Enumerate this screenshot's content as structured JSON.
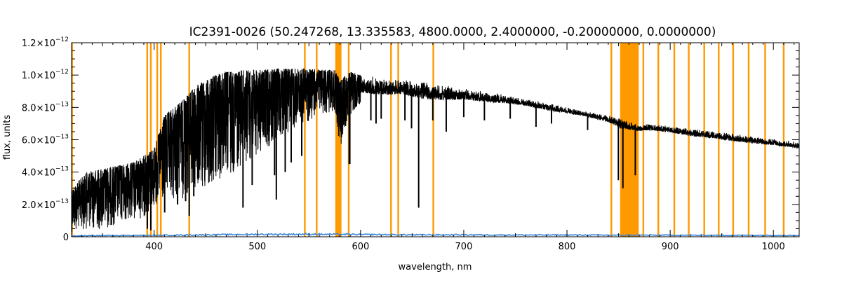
{
  "chart_data": {
    "type": "line",
    "title": "IC2391-0026   (50.247268, 13.335583, 4800.0000, 2.4000000, -0.20000000, 0.0000000)",
    "xlabel": "wavelength, nm",
    "ylabel": "flux, units",
    "xlim": [
      320,
      1025
    ],
    "ylim": [
      0,
      1.2e-12
    ],
    "x_ticks": [
      {
        "value": 400,
        "label": "400"
      },
      {
        "value": 500,
        "label": "500"
      },
      {
        "value": 600,
        "label": "600"
      },
      {
        "value": 700,
        "label": "700"
      },
      {
        "value": 800,
        "label": "800"
      },
      {
        "value": 900,
        "label": "900"
      },
      {
        "value": 1000,
        "label": "1000"
      }
    ],
    "y_ticks": [
      {
        "value": 0,
        "mantissa": "0",
        "exponent": ""
      },
      {
        "value": 2e-13,
        "mantissa": "2.0×10",
        "exponent": "−13"
      },
      {
        "value": 4e-13,
        "mantissa": "4.0×10",
        "exponent": "−13"
      },
      {
        "value": 6e-13,
        "mantissa": "6.0×10",
        "exponent": "−13"
      },
      {
        "value": 8e-13,
        "mantissa": "8.0×10",
        "exponent": "−13"
      },
      {
        "value": 1e-12,
        "mantissa": "1.0×10",
        "exponent": "−12"
      },
      {
        "value": 1.2e-12,
        "mantissa": "1.2×10",
        "exponent": "−12"
      }
    ],
    "series": [
      {
        "color": "#000000",
        "envelope": {
          "x": [
            320,
            335,
            350,
            365,
            380,
            390,
            400,
            410,
            425,
            440,
            455,
            470,
            485,
            500,
            520,
            540,
            560,
            575,
            580,
            590,
            600,
            620,
            640,
            660,
            680,
            700,
            720,
            740,
            760,
            780,
            800,
            820,
            840,
            852,
            870,
            880,
            900,
            920,
            940,
            960,
            980,
            1000,
            1025
          ],
          "upper": [
            3e-13,
            4e-13,
            4.2e-13,
            4.4e-13,
            4.6e-13,
            5e-13,
            5.5e-13,
            7.5e-13,
            8.3e-13,
            9.3e-13,
            9.9e-13,
            1.02e-12,
            1.03e-12,
            1.03e-12,
            1.04e-12,
            1.04e-12,
            1.035e-12,
            1.03e-12,
            9.7e-13,
            1.02e-12,
            1e-12,
            9.9e-13,
            9.75e-13,
            9.6e-13,
            9.4e-13,
            9.2e-13,
            9e-13,
            8.8e-13,
            8.55e-13,
            8.3e-13,
            8e-13,
            7.75e-13,
            7.5e-13,
            7.4e-13,
            6.9e-13,
            7e-13,
            6.85e-13,
            6.7e-13,
            6.55e-13,
            6.4e-13,
            6.2e-13,
            6.05e-13,
            5.9e-13
          ],
          "lower": [
            3e-14,
            5e-14,
            4e-14,
            8e-14,
            1e-13,
            1.2e-13,
            1.8e-13,
            2e-13,
            2.3e-13,
            2.5e-13,
            3e-13,
            3.5e-13,
            4.5e-13,
            5e-13,
            6e-13,
            6.8e-13,
            7.5e-13,
            7.8e-13,
            5.5e-13,
            7.5e-13,
            8.2e-13,
            8e-13,
            8.2e-13,
            7.8e-13,
            7.8e-13,
            8e-13,
            7.9e-13,
            7.9e-13,
            7.8e-13,
            7.5e-13,
            7.4e-13,
            7.2e-13,
            6.8e-13,
            6.2e-13,
            6.3e-13,
            6.3e-13,
            6.2e-13,
            5.9e-13,
            5.8e-13,
            5.6e-13,
            5.5e-13,
            5.4e-13,
            5.2e-13
          ]
        },
        "deep_lines": [
          {
            "x": 393.4,
            "min": 5e-14
          },
          {
            "x": 396.8,
            "min": 4e-14
          },
          {
            "x": 410.2,
            "min": 1.5e-13
          },
          {
            "x": 422.7,
            "min": 2e-13
          },
          {
            "x": 430.5,
            "min": 2.2e-13
          },
          {
            "x": 434.0,
            "min": 1.3e-13
          },
          {
            "x": 438.4,
            "min": 2.5e-13
          },
          {
            "x": 486.1,
            "min": 1.8e-13
          },
          {
            "x": 495.0,
            "min": 3.2e-13
          },
          {
            "x": 516.7,
            "min": 3.8e-13
          },
          {
            "x": 518.4,
            "min": 2.3e-13
          },
          {
            "x": 527.0,
            "min": 4e-13
          },
          {
            "x": 532.8,
            "min": 4.6e-13
          },
          {
            "x": 543.0,
            "min": 5e-13
          },
          {
            "x": 589.0,
            "min": 4.5e-13
          },
          {
            "x": 589.6,
            "min": 4.5e-13
          },
          {
            "x": 595.0,
            "min": 8e-13
          },
          {
            "x": 610.0,
            "min": 7.2e-13
          },
          {
            "x": 615.0,
            "min": 7e-13
          },
          {
            "x": 620.0,
            "min": 7.3e-13
          },
          {
            "x": 643.0,
            "min": 7.2e-13
          },
          {
            "x": 649.4,
            "min": 6.7e-13
          },
          {
            "x": 656.3,
            "min": 1.8e-13
          },
          {
            "x": 670.0,
            "min": 7.2e-13
          },
          {
            "x": 683.0,
            "min": 6.5e-13
          },
          {
            "x": 700.0,
            "min": 7.4e-13
          },
          {
            "x": 720.0,
            "min": 7.2e-13
          },
          {
            "x": 745.0,
            "min": 7.3e-13
          },
          {
            "x": 770.0,
            "min": 6.8e-13
          },
          {
            "x": 785.0,
            "min": 7e-13
          },
          {
            "x": 820.0,
            "min": 6.6e-13
          },
          {
            "x": 849.8,
            "min": 3.5e-13
          },
          {
            "x": 854.2,
            "min": 3e-13
          },
          {
            "x": 866.2,
            "min": 3.8e-13
          }
        ]
      },
      {
        "color": "#3a86d9",
        "x": [
          320,
          350,
          400,
          450,
          500,
          550,
          600,
          650,
          700,
          750,
          800,
          850,
          900,
          950,
          1000,
          1025
        ],
        "values": [
          5e-15,
          8e-15,
          9e-15,
          1.2e-14,
          1.5e-14,
          1.6e-14,
          1.4e-14,
          1.2e-14,
          1.2e-14,
          1.1e-14,
          1.1e-14,
          1e-14,
          1e-14,
          9e-15,
          9e-15,
          8e-15
        ]
      }
    ],
    "masked_regions": {
      "color": "#ff9900",
      "lines": [
        320.5,
        393.3,
        396.8,
        403.0,
        406.5,
        434.0,
        546.0,
        557.5,
        588.5,
        629.5,
        636.5,
        670.5,
        843.0,
        874.0,
        888.5,
        904.0,
        918.0,
        933.0,
        947.0,
        961.0,
        976.0,
        992.0,
        1010.0
      ],
      "bands": [
        [
          575.5,
          581.5
        ],
        [
          851.5,
          869.5
        ]
      ]
    }
  }
}
